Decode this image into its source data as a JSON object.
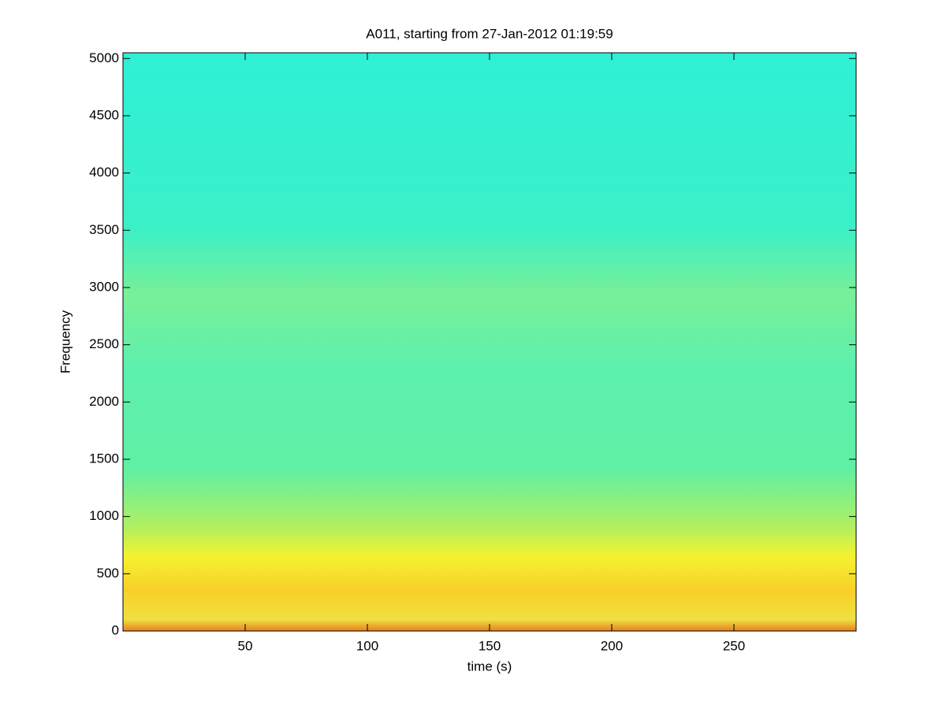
{
  "chart_data": {
    "type": "spectrogram",
    "title": "A011, starting from 27-Jan-2012 01:19:59",
    "x_label": "time (s)",
    "y_label": "Frequency",
    "xlim": [
      0,
      300
    ],
    "xticks": [
      50,
      100,
      150,
      200,
      250
    ],
    "ylim": [
      0,
      5050
    ],
    "yticks": [
      0,
      500,
      1000,
      1500,
      2000,
      2500,
      3000,
      3500,
      4000,
      4500,
      5000
    ]
  }
}
